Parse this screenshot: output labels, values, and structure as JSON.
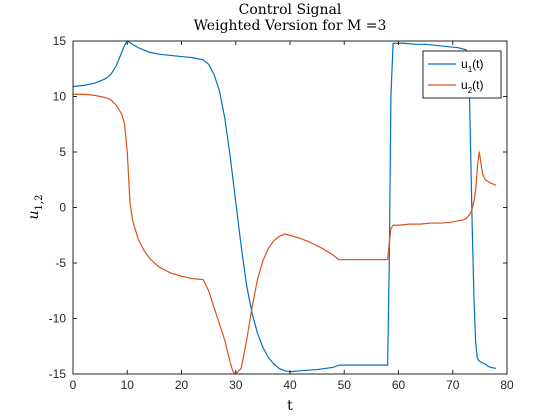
{
  "chart_data": {
    "type": "line",
    "title": "Control Signal",
    "subtitle": "Weighted Version for M =3",
    "xlabel": "t",
    "ylabel_main": "u",
    "ylabel_sub": "1,2",
    "xlim": [
      0,
      80
    ],
    "ylim": [
      -15,
      15
    ],
    "xticks": [
      0,
      10,
      20,
      30,
      40,
      50,
      60,
      70,
      80
    ],
    "yticks": [
      -15,
      -10,
      -5,
      0,
      5,
      10,
      15
    ],
    "grid": false,
    "legend_position": "top-right",
    "series": [
      {
        "label_main": "u",
        "label_sub": "1",
        "label_tail": "(t)",
        "color": "#0072BD",
        "x": [
          0,
          2,
          4,
          6,
          7,
          8,
          9,
          9.5,
          10,
          11,
          12,
          14,
          16,
          18,
          20,
          22,
          23,
          24,
          25,
          26,
          27,
          28,
          29,
          30,
          31,
          32,
          33,
          34,
          35,
          36,
          37,
          38,
          39,
          40,
          42,
          45,
          48,
          49,
          50,
          53,
          56,
          58,
          58.3,
          58.6,
          59,
          61,
          63,
          65,
          67,
          69,
          71,
          72.5,
          73,
          73.3,
          73.6,
          73.9,
          74.2,
          74.5,
          74.8,
          75.1,
          75.5,
          76,
          76.5,
          77,
          78
        ],
        "y": [
          10.9,
          11,
          11.2,
          11.6,
          12,
          12.8,
          14,
          14.6,
          15,
          14.7,
          14.4,
          14,
          13.8,
          13.7,
          13.6,
          13.5,
          13.4,
          13.3,
          12.9,
          12,
          10.5,
          8,
          4.5,
          0.5,
          -3.5,
          -7,
          -9.5,
          -11.3,
          -12.6,
          -13.5,
          -14.1,
          -14.5,
          -14.7,
          -14.8,
          -14.7,
          -14.6,
          -14.4,
          -14.2,
          -14.2,
          -14.2,
          -14.2,
          -14.2,
          -5,
          10,
          14.8,
          14.8,
          14.7,
          14.7,
          14.6,
          14.5,
          14.4,
          14.2,
          12,
          5,
          -2,
          -8,
          -12,
          -13.5,
          -13.8,
          -13.9,
          -14,
          -14.1,
          -14.3,
          -14.4,
          -14.5
        ]
      },
      {
        "label_main": "u",
        "label_sub": "2",
        "label_tail": "(t)",
        "color": "#D95319",
        "x": [
          0,
          2,
          4,
          6,
          7,
          8,
          9,
          9.5,
          10,
          10.5,
          11,
          12,
          13,
          14,
          15,
          16,
          18,
          20,
          22,
          24,
          25,
          26,
          27,
          28,
          29,
          29.5,
          30,
          31,
          32,
          33,
          34,
          35,
          36,
          37,
          38,
          39,
          40,
          42,
          44,
          46,
          48,
          49,
          50,
          53,
          56,
          58,
          58.3,
          58.6,
          59,
          60,
          62,
          64,
          66,
          68,
          70,
          72,
          72.5,
          73,
          73.5,
          74,
          74.3,
          74.6,
          74.9,
          75.2,
          75.5,
          76,
          77,
          78
        ],
        "y": [
          10.2,
          10.2,
          10.1,
          9.9,
          9.7,
          9.2,
          8.4,
          7.5,
          5,
          0.5,
          -1.2,
          -2.8,
          -3.8,
          -4.5,
          -5,
          -5.4,
          -5.9,
          -6.2,
          -6.4,
          -6.5,
          -7.5,
          -9,
          -10.5,
          -12,
          -14,
          -14.8,
          -15,
          -14.5,
          -12,
          -9,
          -6.5,
          -4.8,
          -3.7,
          -3,
          -2.6,
          -2.4,
          -2.5,
          -2.8,
          -3.2,
          -3.7,
          -4.3,
          -4.7,
          -4.7,
          -4.7,
          -4.7,
          -4.7,
          -3.2,
          -1.9,
          -1.6,
          -1.6,
          -1.5,
          -1.5,
          -1.4,
          -1.4,
          -1.3,
          -1.1,
          -1,
          -0.7,
          -0.3,
          0.8,
          2,
          4,
          5,
          4,
          3,
          2.5,
          2.2,
          2
        ]
      }
    ]
  }
}
